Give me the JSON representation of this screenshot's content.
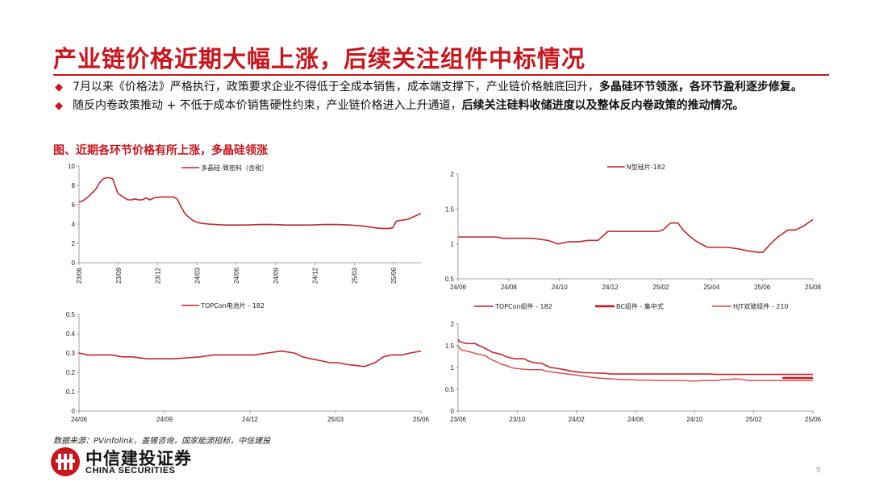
{
  "title": "产业链价格近期大幅上涨，后续关注组件中标情况",
  "bullets": [
    {
      "parts": [
        {
          "text": "7月以来《价格法》严格执行，政策要求企业不得低于全成本销售，成本端支撑下，产业链价格触底回升，",
          "bold": false
        },
        {
          "text": "多晶硅环节领涨，各环节盈利逐步修复。",
          "bold": true
        }
      ]
    },
    {
      "parts": [
        {
          "text": "随反内卷政策推动 + 不低于成本价销售硬性约束，产业链价格进入上升通道，",
          "bold": false
        },
        {
          "text": "后续关注硅料收储进度以及整体反内卷政策的推动情况。",
          "bold": true
        }
      ]
    }
  ],
  "figure_title": "图、近期各环节价格有所上涨，多晶硅领涨",
  "source": "数据来源：PVinfolink，盖锡咨询，国家能源招标，中信建投",
  "logo": {
    "cn": "中信建投证券",
    "en": "CHINA SECURITIES"
  },
  "page_number": "5",
  "colors": {
    "accent": "#c8161d",
    "line": "#c0272d"
  },
  "chart_data": [
    {
      "type": "line",
      "x_ticks": [
        "23/06",
        "23/09",
        "23/12",
        "24/03",
        "24/06",
        "24/09",
        "24/12",
        "25/03",
        "25/06"
      ],
      "x_tick_rotation": "vertical",
      "ylim": [
        0,
        10
      ],
      "y_ticks": [
        "0",
        "2",
        "4",
        "6",
        "8",
        "10"
      ],
      "legend_position": "top",
      "series": [
        {
          "name": "多晶硅-致密料（含税）",
          "x": [
            0,
            0.3,
            0.7,
            1.0,
            1.3,
            1.6,
            1.9,
            2.2,
            2.6,
            3.0,
            3.4,
            3.8,
            4.1,
            4.3,
            4.6,
            4.9,
            5.2,
            5.5,
            5.8,
            6.3,
            6.8,
            7.3,
            7.6,
            7.9,
            8.2,
            8.5,
            8.8,
            9.1,
            9.4,
            9.7,
            10.0,
            10.6,
            11.2,
            12.0,
            13.0,
            14.0,
            15.0,
            16.0,
            17.0,
            18.0,
            19.0,
            20.0,
            21.0,
            22.0,
            22.5,
            23.0,
            23.5,
            24.0,
            24.3,
            24.6,
            25.0,
            25.5,
            26.0,
            26.5
          ],
          "values": [
            6.3,
            6.4,
            6.8,
            7.2,
            7.6,
            8.3,
            8.7,
            8.8,
            8.7,
            7.2,
            6.8,
            6.5,
            6.5,
            6.6,
            6.5,
            6.5,
            6.7,
            6.5,
            6.7,
            6.8,
            6.8,
            6.8,
            6.6,
            5.8,
            5.1,
            4.7,
            4.4,
            4.2,
            4.1,
            4.05,
            4.0,
            3.95,
            3.9,
            3.9,
            3.9,
            3.95,
            3.95,
            3.9,
            3.9,
            3.9,
            3.95,
            3.95,
            3.9,
            3.8,
            3.7,
            3.6,
            3.55,
            3.55,
            3.6,
            4.3,
            4.4,
            4.5,
            4.8,
            5.1
          ]
        }
      ]
    },
    {
      "type": "line",
      "x_ticks": [
        "24/06",
        "24/08",
        "24/10",
        "24/12",
        "25/02",
        "25/04",
        "25/06",
        "25/08"
      ],
      "ylim": [
        0.5,
        2
      ],
      "y_ticks": [
        "0.5",
        "1",
        "1.5",
        "2"
      ],
      "legend_position": "top-right",
      "series": [
        {
          "name": "N型硅片-182",
          "x": [
            0,
            0.5,
            1.0,
            1.5,
            1.8,
            2.2,
            2.6,
            3.0,
            3.6,
            4.0,
            4.4,
            4.8,
            5.2,
            5.6,
            6.0,
            6.4,
            6.8,
            7.2,
            7.6,
            8.0,
            8.2,
            8.5,
            8.8,
            9.0,
            9.3,
            9.6,
            10.0,
            10.4,
            10.8,
            11.2,
            11.6,
            12.0,
            12.2,
            12.5,
            12.8,
            13.2,
            13.5,
            13.8,
            14.2
          ],
          "values": [
            1.1,
            1.1,
            1.1,
            1.1,
            1.08,
            1.08,
            1.08,
            1.08,
            1.05,
            1.0,
            1.03,
            1.03,
            1.05,
            1.05,
            1.18,
            1.18,
            1.18,
            1.18,
            1.18,
            1.18,
            1.2,
            1.3,
            1.3,
            1.2,
            1.1,
            1.02,
            0.95,
            0.95,
            0.95,
            0.93,
            0.9,
            0.88,
            0.88,
            1.0,
            1.1,
            1.2,
            1.2,
            1.25,
            1.35
          ]
        }
      ]
    },
    {
      "type": "line",
      "x_ticks": [
        "24/06",
        "24/09",
        "24/12",
        "25/03",
        "25/06"
      ],
      "ylim": [
        0,
        0.5
      ],
      "y_ticks": [
        "0",
        "0.1",
        "0.2",
        "0.3",
        "0.4",
        "0.5"
      ],
      "legend_position": "top",
      "series": [
        {
          "name": "TOPCon电池片 - 182",
          "x": [
            0,
            0.3,
            0.8,
            1.2,
            1.6,
            2.0,
            2.5,
            3.0,
            3.5,
            4.0,
            4.5,
            5.0,
            5.5,
            6.0,
            6.5,
            7.0,
            7.5,
            8.0,
            8.3,
            8.6,
            9.0,
            9.3,
            9.6,
            10.0,
            10.3,
            10.6,
            11.0,
            11.3,
            11.6,
            12.0,
            12.3,
            12.7
          ],
          "values": [
            0.3,
            0.29,
            0.29,
            0.29,
            0.28,
            0.28,
            0.27,
            0.27,
            0.27,
            0.275,
            0.28,
            0.29,
            0.29,
            0.29,
            0.29,
            0.3,
            0.31,
            0.3,
            0.28,
            0.27,
            0.26,
            0.25,
            0.25,
            0.24,
            0.235,
            0.23,
            0.25,
            0.28,
            0.29,
            0.29,
            0.3,
            0.31
          ]
        }
      ]
    },
    {
      "type": "line",
      "x_ticks": [
        "23/06",
        "23/10",
        "24/02",
        "24/06",
        "24/10",
        "25/02",
        "25/06"
      ],
      "ylim": [
        0,
        2
      ],
      "y_ticks": [
        "0",
        "0.5",
        "1",
        "1.5",
        "2"
      ],
      "legend_position": "top",
      "series": [
        {
          "name": "TOPCon组件 - 182",
          "x": [
            0,
            0.1,
            0.3,
            0.6,
            1.0,
            1.3,
            1.6,
            2.0,
            2.3,
            2.6,
            3.0,
            3.3,
            3.6,
            4.0,
            4.3,
            4.6,
            5.0,
            5.3,
            5.6,
            6.0,
            6.3,
            6.6,
            7.0,
            7.5,
            8.0,
            8.5,
            9.0,
            9.5,
            10.0,
            10.5,
            11.0,
            11.5,
            12.0,
            12.5,
            13.0,
            13.5,
            14.0,
            14.5,
            15.0,
            15.5,
            16.0,
            16.5,
            17.0,
            17.5,
            18.0,
            18.5,
            19.0,
            19.5,
            20.0,
            20.5,
            21.0,
            21.5,
            22.0,
            22.5,
            23.0,
            23.5,
            24.0,
            24.5,
            25.0,
            25.5,
            26.0,
            26.5,
            26.8
          ],
          "values": [
            1.65,
            1.6,
            1.58,
            1.55,
            1.55,
            1.55,
            1.5,
            1.45,
            1.4,
            1.35,
            1.32,
            1.3,
            1.25,
            1.22,
            1.2,
            1.2,
            1.2,
            1.15,
            1.12,
            1.1,
            1.1,
            1.05,
            1.0,
            0.98,
            0.95,
            0.92,
            0.9,
            0.88,
            0.88,
            0.87,
            0.87,
            0.85,
            0.85,
            0.85,
            0.85,
            0.85,
            0.85,
            0.85,
            0.85,
            0.85,
            0.85,
            0.85,
            0.85,
            0.85,
            0.85,
            0.85,
            0.85,
            0.84,
            0.84,
            0.84,
            0.84,
            0.84,
            0.84,
            0.84,
            0.84,
            0.84,
            0.84,
            0.84,
            0.84,
            0.84,
            0.84,
            0.84,
            0.84
          ]
        },
        {
          "name": "BC组件 - 集中式",
          "x": [
            24.5,
            25.0,
            25.5,
            26.0,
            26.5,
            26.8
          ],
          "values": [
            0.76,
            0.76,
            0.76,
            0.76,
            0.76,
            0.76
          ]
        },
        {
          "name": "HJT双玻组件 - 210",
          "x": [
            0,
            0.1,
            0.3,
            0.6,
            1.0,
            1.3,
            1.6,
            2.0,
            2.3,
            2.6,
            3.0,
            3.3,
            3.6,
            4.0,
            4.3,
            4.6,
            5.0,
            5.3,
            5.6,
            6.0,
            6.3,
            6.6,
            7.0,
            7.5,
            8.0,
            8.5,
            9.0,
            9.5,
            10.0,
            10.5,
            11.0,
            11.5,
            12.0,
            12.5,
            13.0,
            13.5,
            14.0,
            14.5,
            15.0,
            15.5,
            16.0,
            16.5,
            17.0,
            17.5,
            18.0,
            18.5,
            19.0,
            19.5,
            20.0,
            20.5,
            21.0,
            21.5,
            22.0,
            22.5,
            23.0,
            23.5,
            24.0,
            24.5,
            25.0,
            25.5,
            26.0,
            26.5,
            26.8
          ],
          "values": [
            1.5,
            1.45,
            1.4,
            1.38,
            1.35,
            1.32,
            1.3,
            1.28,
            1.22,
            1.17,
            1.12,
            1.07,
            1.05,
            1.0,
            0.98,
            0.97,
            0.96,
            0.95,
            0.95,
            0.95,
            0.95,
            0.92,
            0.9,
            0.88,
            0.86,
            0.84,
            0.82,
            0.8,
            0.78,
            0.76,
            0.75,
            0.74,
            0.73,
            0.72,
            0.72,
            0.71,
            0.71,
            0.71,
            0.7,
            0.7,
            0.7,
            0.7,
            0.7,
            0.69,
            0.69,
            0.7,
            0.7,
            0.7,
            0.72,
            0.72,
            0.74,
            0.72,
            0.7,
            0.7,
            0.7,
            0.7,
            0.7,
            0.7,
            0.7,
            0.7,
            0.7,
            0.7,
            0.7
          ]
        }
      ]
    }
  ]
}
